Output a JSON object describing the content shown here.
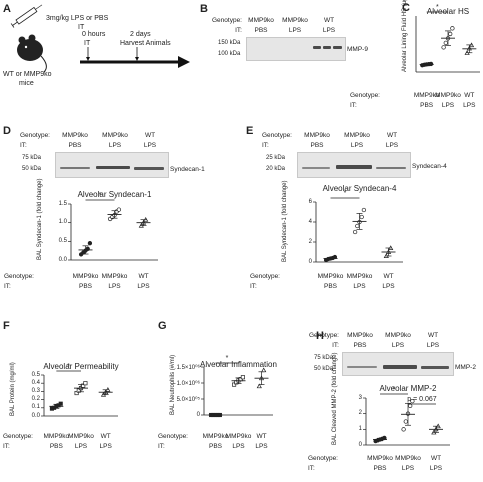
{
  "panel_a": {
    "letter": "A",
    "dose_text_1": "3mg/kg LPS or PBS",
    "dose_text_2": "IT",
    "mice_text_1": "WT or MMP9ko",
    "mice_text_2": "mice",
    "t0_label_1": "0 hours",
    "t0_label_2": "IT",
    "t1_label_1": "2 days",
    "t1_label_2": "Harvest Animals"
  },
  "panel_b": {
    "letter": "B",
    "genotype_label": "Genotype:",
    "it_label": "IT:",
    "genotypes": [
      "MMP9ko",
      "MMP9ko",
      "WT"
    ],
    "treatments": [
      "PBS",
      "LPS",
      "LPS"
    ],
    "markers": [
      "150 kDa",
      "100 kDa"
    ],
    "protein": "MMP-9"
  },
  "panel_d_blot": {
    "letter": "D",
    "genotype_label": "Genotype:",
    "it_label": "IT:",
    "genotypes": [
      "MMP9ko",
      "MMP9ko",
      "WT"
    ],
    "treatments": [
      "PBS",
      "LPS",
      "LPS"
    ],
    "markers": [
      "75 kDa",
      "50 kDa"
    ],
    "protein": "Syndecan-1"
  },
  "panel_e_blot": {
    "letter": "E",
    "genotype_label": "Genotype:",
    "it_label": "IT:",
    "genotypes": [
      "MMP9ko",
      "MMP9ko",
      "WT"
    ],
    "treatments": [
      "PBS",
      "LPS",
      "LPS"
    ],
    "markers": [
      "25 kDa",
      "20 kDa"
    ],
    "protein": "Syndecan-4"
  },
  "panel_h_blot": {
    "letter": "H",
    "genotype_label": "Genotype:",
    "it_label": "IT:",
    "genotypes": [
      "MMP9ko",
      "MMP9ko",
      "WT"
    ],
    "treatments": [
      "PBS",
      "LPS",
      "LPS"
    ],
    "markers": [
      "75 kDa",
      "50 kDa"
    ],
    "protein": "MMP-2"
  },
  "chart_data": [
    {
      "id": "C",
      "letter": "C",
      "type": "scatter",
      "title": "Alveolar HS",
      "ylabel": "Alveolar Lining Fluid HS (μg/ml)",
      "ylim": [
        0,
        5000
      ],
      "yticks": [],
      "row_labels": [
        "Genotype:",
        "IT:"
      ],
      "categories": [
        [
          "MMP9ko",
          "PBS"
        ],
        [
          "MMP9ko",
          "LPS"
        ],
        [
          "WT",
          "LPS"
        ]
      ],
      "points": [
        [
          600,
          650,
          680,
          700,
          720
        ],
        [
          2200,
          2600,
          3000,
          3400,
          3900
        ],
        [
          1700,
          2100,
          2400
        ]
      ],
      "mean": [
        670,
        3020,
        2070
      ],
      "sd": [
        50,
        650,
        350
      ],
      "markers": [
        "filled-circle",
        "open-circle",
        "open-triangle"
      ],
      "significance": [
        {
          "pair": [
            0,
            1
          ],
          "label": "*"
        }
      ]
    },
    {
      "id": "D",
      "type": "scatter",
      "title": "Alveolar Syndecan-1",
      "ylabel": "BAL Syndecan-1 (fold change)",
      "ylim": [
        0,
        1.5
      ],
      "yticks": [
        "0.0",
        "0.5",
        "1.0",
        "1.5"
      ],
      "row_labels": [
        "Genotype:",
        "IT:"
      ],
      "categories": [
        [
          "MMP9ko",
          "PBS"
        ],
        [
          "MMP9ko",
          "LPS"
        ],
        [
          "WT",
          "LPS"
        ]
      ],
      "points": [
        [
          0.15,
          0.2,
          0.25,
          0.3,
          0.45
        ],
        [
          1.1,
          1.15,
          1.2,
          1.3,
          1.35
        ],
        [
          0.92,
          1.0,
          1.08
        ]
      ],
      "mean": [
        0.27,
        1.22,
        1.0
      ],
      "sd": [
        0.11,
        0.1,
        0.08
      ],
      "markers": [
        "filled-circle",
        "open-circle",
        "open-triangle"
      ],
      "significance": [
        {
          "pair": [
            0,
            1
          ],
          "label": "*"
        }
      ]
    },
    {
      "id": "E",
      "type": "scatter",
      "title": "Alveolar Syndecan-4",
      "ylabel": "BAL Syndecan-1 (fold change)",
      "ylim": [
        0,
        6
      ],
      "yticks": [
        "0",
        "2",
        "4",
        "6"
      ],
      "row_labels": [
        "Genotype:",
        "IT:"
      ],
      "categories": [
        [
          "MMP9ko",
          "PBS"
        ],
        [
          "MMP9ko",
          "LPS"
        ],
        [
          "WT",
          "LPS"
        ]
      ],
      "points": [
        [
          0.2,
          0.3,
          0.35,
          0.4,
          0.5
        ],
        [
          3.0,
          3.6,
          4.0,
          4.5,
          5.2
        ],
        [
          0.6,
          1.0,
          1.4
        ]
      ],
      "mean": [
        0.35,
        4.06,
        1.0
      ],
      "sd": [
        0.1,
        0.8,
        0.4
      ],
      "markers": [
        "filled-circle",
        "open-circle",
        "open-triangle"
      ],
      "significance": [
        {
          "pair": [
            0,
            1
          ],
          "label": "*"
        }
      ]
    },
    {
      "id": "F",
      "letter": "F",
      "type": "scatter",
      "title": "Alveolar Permeability",
      "ylabel": "BAL Protein (mg/ml)",
      "ylim": [
        0,
        0.5
      ],
      "yticks": [
        "0.0",
        "0.1",
        "0.2",
        "0.3",
        "0.4",
        "0.5"
      ],
      "row_labels": [
        "Genotype:",
        "IT:"
      ],
      "categories": [
        [
          "MMP9ko",
          "PBS"
        ],
        [
          "MMP9ko",
          "LPS"
        ],
        [
          "WT",
          "LPS"
        ]
      ],
      "points": [
        [
          0.09,
          0.1,
          0.12,
          0.13,
          0.15
        ],
        [
          0.28,
          0.31,
          0.34,
          0.37,
          0.4
        ],
        [
          0.26,
          0.29,
          0.32
        ]
      ],
      "mean": [
        0.118,
        0.34,
        0.29
      ],
      "sd": [
        0.025,
        0.045,
        0.03
      ],
      "markers": [
        "filled-square",
        "open-square",
        "open-triangle"
      ],
      "significance": [
        {
          "pair": [
            0,
            1
          ],
          "label": "*"
        }
      ]
    },
    {
      "id": "G",
      "letter": "G",
      "type": "scatter",
      "title": "Alveolar Inflammation",
      "ylabel": "BAL Neutrophils (#/ml)",
      "ylim": [
        0,
        1500000
      ],
      "yticks": [
        "0",
        "5.0×10⁰⁵",
        "1.0×10⁰⁶",
        "1.5×10⁰⁶"
      ],
      "row_labels": [
        "Genotype:",
        "IT:"
      ],
      "categories": [
        [
          "MMP9ko",
          "PBS"
        ],
        [
          "MMP9ko",
          "LPS"
        ],
        [
          "WT",
          "LPS"
        ]
      ],
      "points": [
        [
          0,
          0,
          0,
          0,
          0
        ],
        [
          950000,
          1020000,
          1080000,
          1120000,
          1180000
        ],
        [
          900000,
          1150000,
          1400000
        ]
      ],
      "mean": [
        0,
        1070000,
        1150000
      ],
      "sd": [
        0,
        90000,
        200000
      ],
      "markers": [
        "filled-square",
        "open-square",
        "open-triangle"
      ],
      "significance": [
        {
          "pair": [
            0,
            1
          ],
          "label": "*"
        }
      ]
    },
    {
      "id": "H",
      "type": "scatter",
      "title": "Alveolar MMP-2",
      "ylabel": "BAL Cleaved MMP-2 (fold change)",
      "ylim": [
        0,
        3
      ],
      "yticks": [
        "0",
        "1",
        "2",
        "3"
      ],
      "row_labels": [
        "Genotype:",
        "IT:"
      ],
      "categories": [
        [
          "MMP9ko",
          "PBS"
        ],
        [
          "MMP9ko",
          "LPS"
        ],
        [
          "WT",
          "LPS"
        ]
      ],
      "points": [
        [
          0.25,
          0.3,
          0.35,
          0.4,
          0.45
        ],
        [
          1.0,
          1.5,
          2.0,
          2.5,
          2.8
        ],
        [
          0.8,
          1.0,
          1.2
        ]
      ],
      "mean": [
        0.35,
        1.96,
        1.0
      ],
      "sd": [
        0.08,
        0.7,
        0.2
      ],
      "markers": [
        "filled-circle",
        "open-circle",
        "open-triangle"
      ],
      "significance": [
        {
          "pair": [
            0,
            1
          ],
          "label": "*"
        },
        {
          "pair": [
            1,
            2
          ],
          "label": "p = 0.067"
        }
      ]
    }
  ]
}
